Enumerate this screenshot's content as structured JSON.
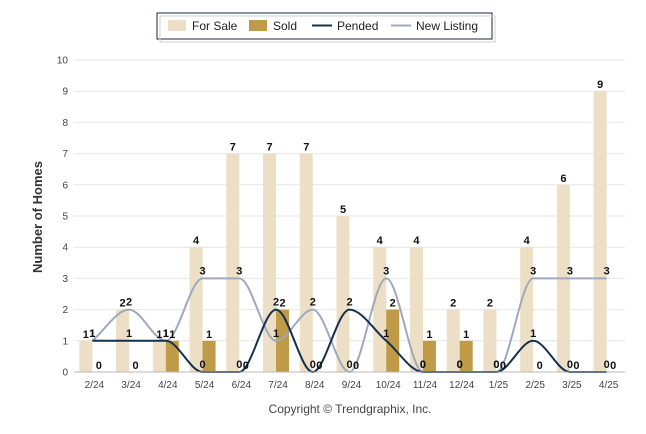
{
  "chart_data": {
    "type": "bar",
    "categories": [
      "2/24",
      "3/24",
      "4/24",
      "5/24",
      "6/24",
      "7/24",
      "8/24",
      "9/24",
      "10/24",
      "11/24",
      "12/24",
      "1/25",
      "2/25",
      "3/25",
      "4/25"
    ],
    "series": [
      {
        "name": "For Sale",
        "kind": "bar",
        "color": "#ecdfc5",
        "values": [
          1,
          2,
          1,
          4,
          7,
          7,
          7,
          5,
          4,
          4,
          2,
          2,
          4,
          6,
          9
        ]
      },
      {
        "name": "Sold",
        "kind": "bar",
        "color": "#bf9a47",
        "values": [
          0,
          0,
          1,
          1,
          0,
          2,
          0,
          0,
          2,
          1,
          1,
          0,
          0,
          0,
          0
        ]
      },
      {
        "name": "Pended",
        "kind": "line",
        "color": "#14304f",
        "values": [
          1,
          1,
          1,
          0,
          0,
          2,
          0,
          2,
          1,
          0,
          0,
          0,
          1,
          0,
          0
        ]
      },
      {
        "name": "New Listing",
        "kind": "line",
        "color": "#9fa9be",
        "values": [
          1,
          2,
          1,
          3,
          3,
          1,
          2,
          0,
          3,
          0,
          0,
          0,
          3,
          3,
          3
        ]
      }
    ],
    "ylabel": "Number of Homes",
    "ylim": [
      0,
      10
    ],
    "yticks": [
      0,
      1,
      2,
      3,
      4,
      5,
      6,
      7,
      8,
      9,
      10
    ],
    "grid": true,
    "legend_position": "top-center",
    "credit": "Copyright © Trendgraphix, Inc."
  }
}
